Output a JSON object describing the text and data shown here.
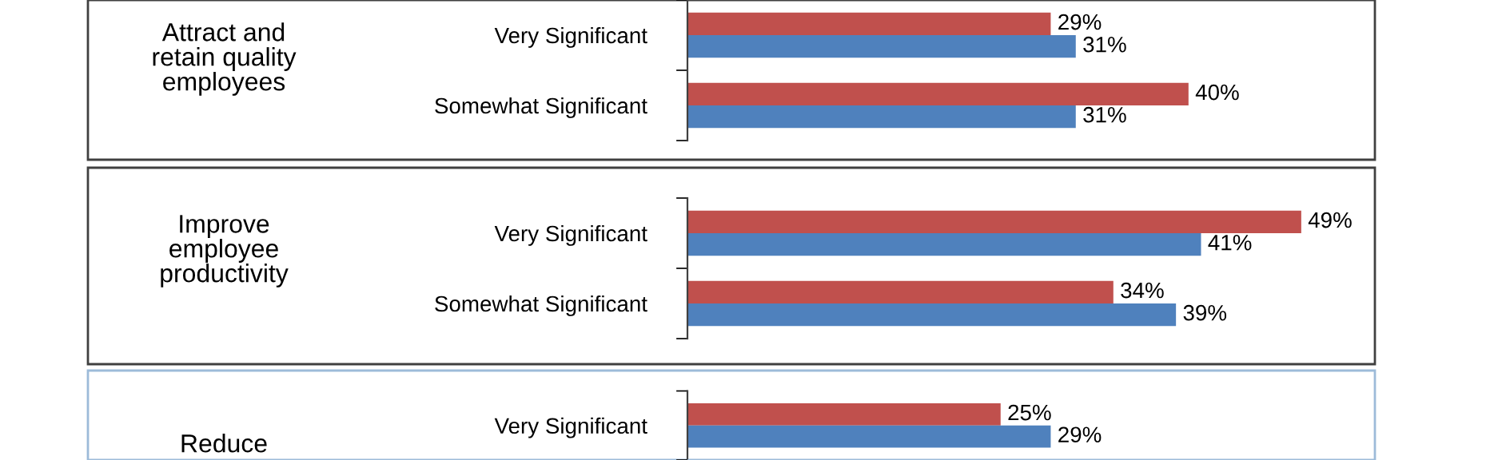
{
  "chart_data": [
    {
      "type": "bar",
      "orientation": "horizontal",
      "title": "Attract and\nretain quality\nemployees",
      "categories": [
        "Very Significant",
        "Somewhat Significant"
      ],
      "tick_labels": "y",
      "series": [
        {
          "color": "#c0504d",
          "values": [
            29,
            40
          ],
          "value_labels": [
            "29%",
            "40%"
          ]
        },
        {
          "color": "#4f81bd",
          "values": [
            31,
            31
          ],
          "value_labels": [
            "31%",
            "31%"
          ]
        }
      ]
    },
    {
      "type": "bar",
      "orientation": "horizontal",
      "title": "Improve\nemployee\nproductivity",
      "categories": [
        "Very Significant",
        "Somewhat Significant"
      ],
      "tick_labels": "y",
      "series": [
        {
          "color": "#c0504d",
          "values": [
            49,
            34
          ],
          "value_labels": [
            "49%",
            "34%"
          ]
        },
        {
          "color": "#4f81bd",
          "values": [
            41,
            39
          ],
          "value_labels": [
            "41%",
            "39%"
          ]
        }
      ]
    },
    {
      "type": "bar",
      "orientation": "horizontal",
      "annotations": [
        "Reduce"
      ],
      "categories": [
        "Very Significant"
      ],
      "tick_labels": "y",
      "series": [
        {
          "color": "#c0504d",
          "values": [
            25
          ],
          "value_labels": [
            "25%"
          ]
        },
        {
          "color": "#4f81bd",
          "values": [
            29
          ],
          "value_labels": [
            "29%"
          ]
        }
      ]
    }
  ]
}
